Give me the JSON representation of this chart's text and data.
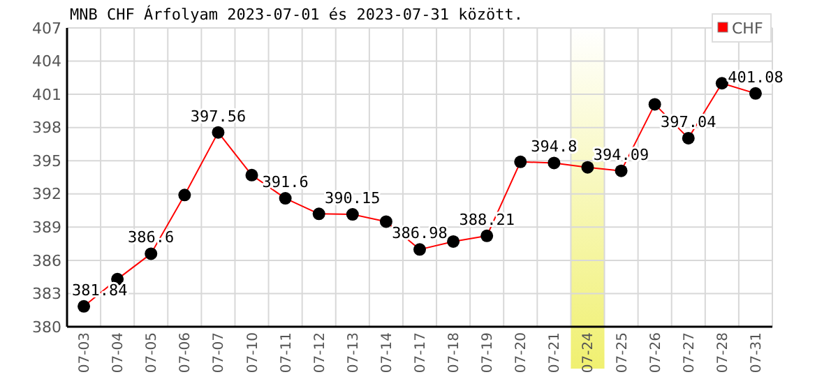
{
  "chart_data": {
    "type": "line",
    "title": "MNB CHF Árfolyam 2023-07-01 és 2023-07-31 között.",
    "categories": [
      "07-03",
      "07-04",
      "07-05",
      "07-06",
      "07-07",
      "07-10",
      "07-11",
      "07-12",
      "07-13",
      "07-14",
      "07-17",
      "07-18",
      "07-19",
      "07-20",
      "07-21",
      "07-24",
      "07-25",
      "07-26",
      "07-27",
      "07-28",
      "07-31"
    ],
    "series": [
      {
        "name": "CHF",
        "color": "#ff0000",
        "values": [
          381.84,
          384.3,
          386.6,
          391.9,
          397.56,
          393.7,
          391.6,
          390.2,
          390.15,
          389.5,
          386.98,
          387.7,
          388.21,
          394.9,
          394.8,
          394.4,
          394.09,
          400.1,
          397.04,
          402.0,
          401.08
        ],
        "value_labels": [
          "381.84",
          null,
          "386.6",
          null,
          "397.56",
          null,
          "391.6",
          null,
          "390.15",
          null,
          "386.98",
          null,
          "388.21",
          null,
          "394.8",
          null,
          "394.09",
          null,
          "397.04",
          null,
          "401.08"
        ]
      }
    ],
    "ylim": [
      380,
      407
    ],
    "yticks": [
      380,
      383,
      386,
      389,
      392,
      395,
      398,
      401,
      404,
      407
    ],
    "bands": [
      {
        "axis": "x",
        "from": "07-24",
        "to": "07-24",
        "color": "#f0f070"
      }
    ],
    "grid": true,
    "legend": "top right",
    "marker": "circle",
    "line_style": "solid"
  }
}
